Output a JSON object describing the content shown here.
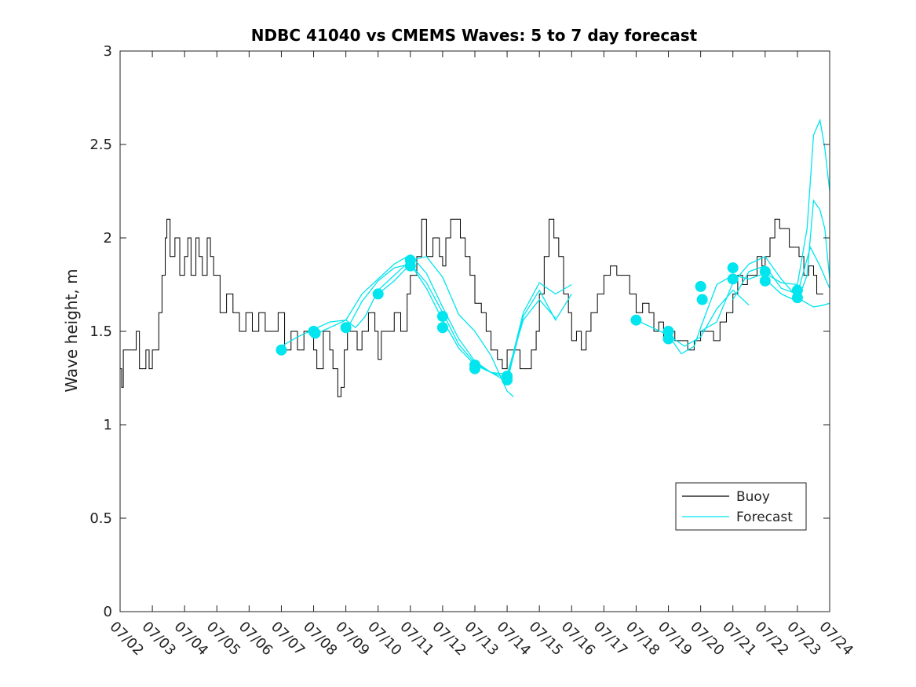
{
  "chart_data": {
    "type": "line",
    "title": "NDBC 41040 vs CMEMS Waves: 5 to 7 day forecast",
    "xlabel": "",
    "ylabel": "Wave height, m",
    "xlim": [
      "07/02",
      "07/24"
    ],
    "ylim": [
      0,
      3
    ],
    "yticks": [
      0,
      0.5,
      1,
      1.5,
      2,
      2.5,
      3
    ],
    "xticks": [
      "07/02",
      "07/03",
      "07/04",
      "07/05",
      "07/06",
      "07/07",
      "07/08",
      "07/09",
      "07/10",
      "07/11",
      "07/12",
      "07/13",
      "07/14",
      "07/15",
      "07/16",
      "07/17",
      "07/18",
      "07/19",
      "07/20",
      "07/21",
      "07/22",
      "07/23",
      "07/24"
    ],
    "grid": false,
    "legend": {
      "placement": "lower-right",
      "entries": [
        "Buoy",
        "Forecast"
      ]
    },
    "colors": {
      "buoy": "#000000",
      "forecast": "#00e5ee"
    },
    "series": [
      {
        "name": "Buoy",
        "points": [
          [
            0.0,
            1.3
          ],
          [
            0.05,
            1.2
          ],
          [
            0.1,
            1.4
          ],
          [
            0.3,
            1.4
          ],
          [
            0.5,
            1.5
          ],
          [
            0.6,
            1.3
          ],
          [
            0.8,
            1.4
          ],
          [
            0.9,
            1.3
          ],
          [
            1.0,
            1.4
          ],
          [
            1.2,
            1.6
          ],
          [
            1.3,
            1.8
          ],
          [
            1.4,
            2.0
          ],
          [
            1.45,
            2.1
          ],
          [
            1.55,
            1.9
          ],
          [
            1.7,
            2.0
          ],
          [
            1.85,
            1.8
          ],
          [
            2.0,
            1.9
          ],
          [
            2.1,
            2.0
          ],
          [
            2.2,
            1.8
          ],
          [
            2.35,
            2.0
          ],
          [
            2.45,
            1.9
          ],
          [
            2.55,
            1.8
          ],
          [
            2.7,
            2.0
          ],
          [
            2.8,
            1.9
          ],
          [
            2.9,
            1.8
          ],
          [
            3.1,
            1.6
          ],
          [
            3.3,
            1.7
          ],
          [
            3.5,
            1.6
          ],
          [
            3.7,
            1.5
          ],
          [
            3.9,
            1.6
          ],
          [
            4.1,
            1.5
          ],
          [
            4.3,
            1.6
          ],
          [
            4.5,
            1.5
          ],
          [
            4.7,
            1.5
          ],
          [
            4.9,
            1.6
          ],
          [
            5.1,
            1.4
          ],
          [
            5.3,
            1.5
          ],
          [
            5.5,
            1.4
          ],
          [
            5.7,
            1.5
          ],
          [
            5.9,
            1.5
          ],
          [
            6.0,
            1.4
          ],
          [
            6.1,
            1.3
          ],
          [
            6.3,
            1.5
          ],
          [
            6.5,
            1.4
          ],
          [
            6.6,
            1.3
          ],
          [
            6.75,
            1.15
          ],
          [
            6.85,
            1.2
          ],
          [
            6.95,
            1.4
          ],
          [
            7.05,
            1.5
          ],
          [
            7.2,
            1.5
          ],
          [
            7.35,
            1.4
          ],
          [
            7.5,
            1.5
          ],
          [
            7.7,
            1.6
          ],
          [
            7.9,
            1.5
          ],
          [
            8.0,
            1.35
          ],
          [
            8.1,
            1.5
          ],
          [
            8.3,
            1.5
          ],
          [
            8.5,
            1.6
          ],
          [
            8.7,
            1.5
          ],
          [
            8.9,
            1.7
          ],
          [
            9.0,
            1.8
          ],
          [
            9.2,
            1.9
          ],
          [
            9.35,
            2.1
          ],
          [
            9.5,
            1.9
          ],
          [
            9.7,
            2.0
          ],
          [
            9.9,
            1.9
          ],
          [
            10.0,
            1.85
          ],
          [
            10.1,
            2.0
          ],
          [
            10.25,
            2.1
          ],
          [
            10.4,
            2.1
          ],
          [
            10.55,
            2.0
          ],
          [
            10.7,
            1.9
          ],
          [
            10.85,
            1.8
          ],
          [
            11.0,
            1.65
          ],
          [
            11.2,
            1.6
          ],
          [
            11.35,
            1.5
          ],
          [
            11.5,
            1.4
          ],
          [
            11.7,
            1.35
          ],
          [
            11.85,
            1.3
          ],
          [
            12.0,
            1.4
          ],
          [
            12.2,
            1.4
          ],
          [
            12.4,
            1.3
          ],
          [
            12.6,
            1.3
          ],
          [
            12.75,
            1.4
          ],
          [
            12.9,
            1.5
          ],
          [
            13.0,
            1.7
          ],
          [
            13.15,
            1.9
          ],
          [
            13.3,
            2.1
          ],
          [
            13.45,
            2.0
          ],
          [
            13.6,
            1.9
          ],
          [
            13.75,
            1.7
          ],
          [
            13.9,
            1.6
          ],
          [
            14.0,
            1.45
          ],
          [
            14.15,
            1.5
          ],
          [
            14.3,
            1.4
          ],
          [
            14.45,
            1.5
          ],
          [
            14.6,
            1.6
          ],
          [
            14.8,
            1.7
          ],
          [
            15.0,
            1.8
          ],
          [
            15.2,
            1.85
          ],
          [
            15.4,
            1.8
          ],
          [
            15.6,
            1.8
          ],
          [
            15.8,
            1.7
          ],
          [
            16.0,
            1.6
          ],
          [
            16.2,
            1.65
          ],
          [
            16.4,
            1.6
          ],
          [
            16.55,
            1.5
          ],
          [
            16.7,
            1.55
          ],
          [
            16.85,
            1.45
          ],
          [
            17.0,
            1.5
          ],
          [
            17.2,
            1.45
          ],
          [
            17.4,
            1.45
          ],
          [
            17.6,
            1.4
          ],
          [
            17.8,
            1.45
          ],
          [
            18.0,
            1.5
          ],
          [
            18.2,
            1.5
          ],
          [
            18.4,
            1.45
          ],
          [
            18.6,
            1.55
          ],
          [
            18.8,
            1.6
          ],
          [
            19.0,
            1.7
          ],
          [
            19.15,
            1.8
          ],
          [
            19.3,
            1.75
          ],
          [
            19.45,
            1.8
          ],
          [
            19.6,
            1.8
          ],
          [
            19.75,
            1.9
          ],
          [
            19.9,
            1.85
          ],
          [
            20.0,
            1.9
          ],
          [
            20.15,
            2.0
          ],
          [
            20.3,
            2.1
          ],
          [
            20.45,
            2.05
          ],
          [
            20.6,
            2.05
          ],
          [
            20.75,
            1.95
          ],
          [
            20.9,
            1.95
          ],
          [
            21.05,
            1.9
          ],
          [
            21.2,
            1.8
          ],
          [
            21.35,
            1.85
          ],
          [
            21.5,
            1.8
          ],
          [
            21.6,
            1.7
          ],
          [
            21.7,
            1.7
          ],
          [
            21.8,
            1.7
          ]
        ]
      },
      {
        "name": "Forecast",
        "lines": [
          [
            [
              5.0,
              1.42
            ],
            [
              5.5,
              1.47
            ],
            [
              6.0,
              1.51
            ],
            [
              6.5,
              1.55
            ],
            [
              7.0,
              1.56
            ],
            [
              7.3,
              1.52
            ],
            [
              7.6,
              1.58
            ],
            [
              8.0,
              1.72
            ],
            [
              8.5,
              1.8
            ],
            [
              9.0,
              1.88
            ],
            [
              9.5,
              1.9
            ],
            [
              10.0,
              1.79
            ],
            [
              10.5,
              1.59
            ],
            [
              11.0,
              1.5
            ],
            [
              11.5,
              1.37
            ],
            [
              12.0,
              1.18
            ],
            [
              12.2,
              1.15
            ]
          ],
          [
            [
              6.0,
              1.48
            ],
            [
              6.5,
              1.52
            ],
            [
              7.0,
              1.56
            ],
            [
              7.5,
              1.7
            ],
            [
              8.0,
              1.78
            ],
            [
              8.5,
              1.86
            ],
            [
              9.0,
              1.91
            ],
            [
              9.5,
              1.81
            ],
            [
              10.0,
              1.63
            ],
            [
              10.5,
              1.46
            ],
            [
              11.0,
              1.34
            ],
            [
              11.5,
              1.28
            ],
            [
              12.0,
              1.27
            ],
            [
              12.5,
              1.56
            ],
            [
              13.0,
              1.67
            ],
            [
              13.5,
              1.57
            ]
          ],
          [
            [
              7.0,
              1.5
            ],
            [
              7.5,
              1.66
            ],
            [
              8.0,
              1.77
            ],
            [
              8.5,
              1.84
            ],
            [
              9.0,
              1.86
            ],
            [
              9.5,
              1.73
            ],
            [
              10.0,
              1.56
            ],
            [
              10.5,
              1.41
            ],
            [
              11.0,
              1.32
            ],
            [
              11.5,
              1.28
            ],
            [
              12.0,
              1.25
            ],
            [
              12.5,
              1.6
            ],
            [
              13.0,
              1.76
            ],
            [
              13.5,
              1.7
            ],
            [
              14.0,
              1.75
            ]
          ],
          [
            [
              8.0,
              1.7
            ],
            [
              8.5,
              1.77
            ],
            [
              9.0,
              1.86
            ],
            [
              9.5,
              1.76
            ],
            [
              10.0,
              1.6
            ],
            [
              10.5,
              1.43
            ],
            [
              11.0,
              1.33
            ],
            [
              11.5,
              1.28
            ],
            [
              12.0,
              1.23
            ],
            [
              12.5,
              1.58
            ],
            [
              13.0,
              1.72
            ],
            [
              13.5,
              1.56
            ],
            [
              14.0,
              1.7
            ]
          ],
          [
            [
              16.0,
              1.56
            ],
            [
              16.5,
              1.52
            ],
            [
              17.0,
              1.48
            ],
            [
              17.5,
              1.42
            ],
            [
              18.0,
              1.47
            ],
            [
              18.5,
              1.62
            ],
            [
              19.0,
              1.72
            ],
            [
              19.5,
              1.64
            ]
          ],
          [
            [
              17.0,
              1.48
            ],
            [
              17.4,
              1.38
            ],
            [
              17.8,
              1.42
            ],
            [
              18.0,
              1.52
            ],
            [
              18.5,
              1.75
            ],
            [
              19.0,
              1.8
            ],
            [
              19.5,
              1.78
            ],
            [
              20.0,
              1.81
            ],
            [
              20.5,
              1.76
            ],
            [
              21.0,
              1.75
            ]
          ],
          [
            [
              18.0,
              1.5
            ],
            [
              18.5,
              1.55
            ],
            [
              19.0,
              1.76
            ],
            [
              19.5,
              1.86
            ],
            [
              20.0,
              1.9
            ],
            [
              20.5,
              1.78
            ],
            [
              21.0,
              1.68
            ],
            [
              21.5,
              1.63
            ],
            [
              21.8,
              1.64
            ],
            [
              22.0,
              1.65
            ]
          ],
          [
            [
              19.0,
              1.67
            ],
            [
              19.5,
              1.82
            ],
            [
              20.0,
              1.85
            ],
            [
              20.5,
              1.73
            ],
            [
              21.0,
              1.7
            ],
            [
              21.4,
              1.95
            ],
            [
              21.7,
              1.85
            ],
            [
              22.0,
              1.73
            ]
          ],
          [
            [
              20.0,
              1.78
            ],
            [
              20.5,
              1.7
            ],
            [
              21.0,
              1.66
            ],
            [
              21.3,
              1.8
            ],
            [
              21.5,
              2.2
            ],
            [
              21.7,
              2.15
            ],
            [
              21.85,
              2.05
            ],
            [
              22.0,
              1.78
            ]
          ],
          [
            [
              21.0,
              1.75
            ],
            [
              21.3,
              2.05
            ],
            [
              21.5,
              2.55
            ],
            [
              21.7,
              2.63
            ],
            [
              21.85,
              2.48
            ],
            [
              22.0,
              2.25
            ]
          ]
        ],
        "markers": [
          [
            5.0,
            1.4
          ],
          [
            6.0,
            1.5
          ],
          [
            6.05,
            1.49
          ],
          [
            7.0,
            1.52
          ],
          [
            8.0,
            1.7
          ],
          [
            9.0,
            1.85
          ],
          [
            9.0,
            1.88
          ],
          [
            10.0,
            1.58
          ],
          [
            10.0,
            1.52
          ],
          [
            11.0,
            1.32
          ],
          [
            11.0,
            1.3
          ],
          [
            12.0,
            1.26
          ],
          [
            12.0,
            1.24
          ],
          [
            16.0,
            1.56
          ],
          [
            17.0,
            1.5
          ],
          [
            17.0,
            1.46
          ],
          [
            18.0,
            1.74
          ],
          [
            18.05,
            1.67
          ],
          [
            19.0,
            1.84
          ],
          [
            19.0,
            1.78
          ],
          [
            20.0,
            1.82
          ],
          [
            20.0,
            1.77
          ],
          [
            21.0,
            1.72
          ],
          [
            21.0,
            1.68
          ]
        ]
      }
    ]
  }
}
